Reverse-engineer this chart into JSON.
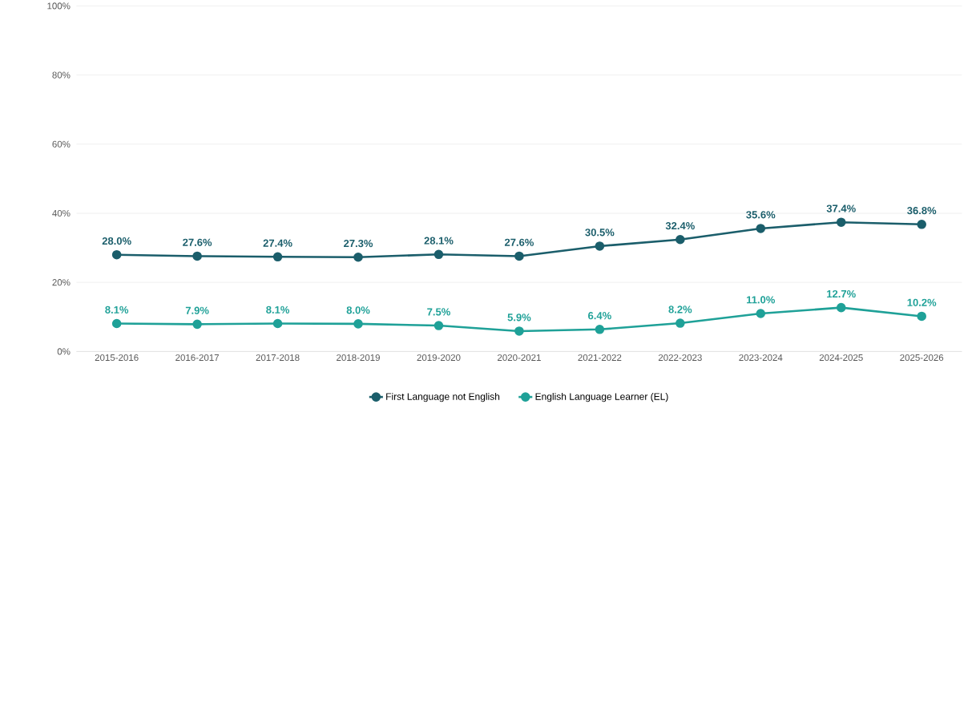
{
  "chart_data": {
    "type": "line",
    "categories": [
      "2015-2016",
      "2016-2017",
      "2017-2018",
      "2018-2019",
      "2019-2020",
      "2020-2021",
      "2021-2022",
      "2022-2023",
      "2023-2024",
      "2024-2025",
      "2025-2026"
    ],
    "series": [
      {
        "name": "First Language not English",
        "color": "#1b5e6b",
        "values": [
          28.0,
          27.6,
          27.4,
          27.3,
          28.1,
          27.6,
          30.5,
          32.4,
          35.6,
          37.4,
          36.8
        ],
        "value_labels": [
          "28.0%",
          "27.6%",
          "27.4%",
          "27.3%",
          "28.1%",
          "27.6%",
          "30.5%",
          "32.4%",
          "35.6%",
          "37.4%",
          "36.8%"
        ]
      },
      {
        "name": "English Language Learner (EL)",
        "color": "#1fa198",
        "values": [
          8.1,
          7.9,
          8.1,
          8.0,
          7.5,
          5.9,
          6.4,
          8.2,
          11.0,
          12.7,
          10.2
        ],
        "value_labels": [
          "8.1%",
          "7.9%",
          "8.1%",
          "8.0%",
          "7.5%",
          "5.9%",
          "6.4%",
          "8.2%",
          "11.0%",
          "12.7%",
          "10.2%"
        ]
      }
    ],
    "ylim": [
      0,
      100
    ],
    "yticks": [
      {
        "value": 0,
        "label": "0%"
      },
      {
        "value": 20,
        "label": "20%"
      },
      {
        "value": 40,
        "label": "40%"
      },
      {
        "value": 60,
        "label": "60%"
      },
      {
        "value": 80,
        "label": "80%"
      },
      {
        "value": 100,
        "label": "100%"
      }
    ],
    "grid": "y",
    "legend": "bottom",
    "marker": "circle",
    "line_style": "solid"
  }
}
